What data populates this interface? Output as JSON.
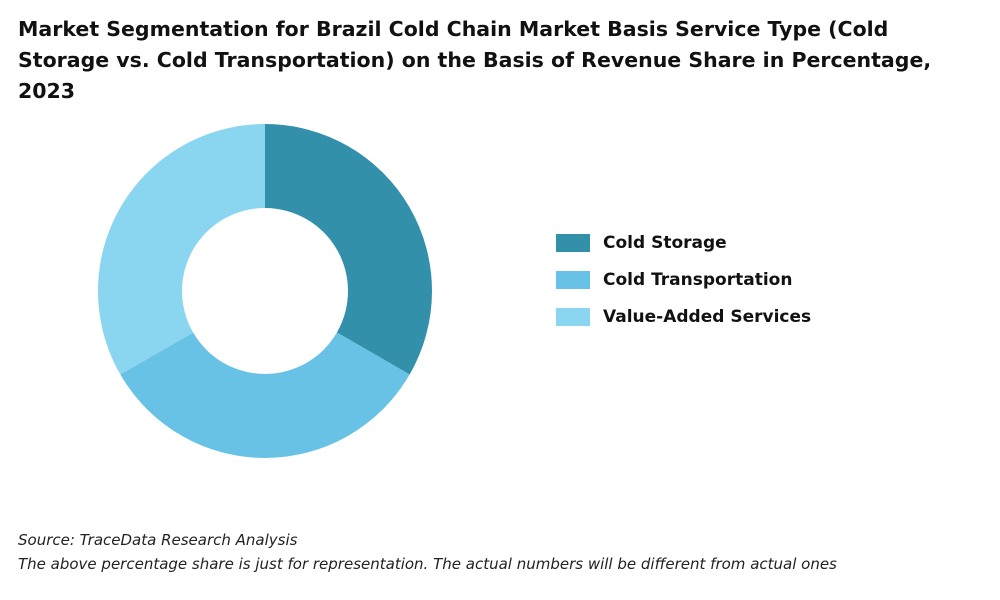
{
  "chart_data": {
    "type": "pie",
    "donut": true,
    "title": "Market Segmentation for Brazil Cold Chain Market Basis Service Type (Cold Storage vs. Cold Transportation) on the Basis of Revenue Share in Percentage, 2023",
    "legend_position": "right",
    "categories": [
      "Cold Storage",
      "Cold Transportation",
      "Value-Added Services"
    ],
    "values": [
      33.3,
      33.3,
      33.3
    ],
    "colors": [
      "#3290AB",
      "#67C2E5",
      "#8AD5F0"
    ]
  },
  "footer": {
    "source": "Source: TraceData Research Analysis",
    "note": "The above percentage share is just for representation. The actual numbers will be different from actual ones"
  }
}
